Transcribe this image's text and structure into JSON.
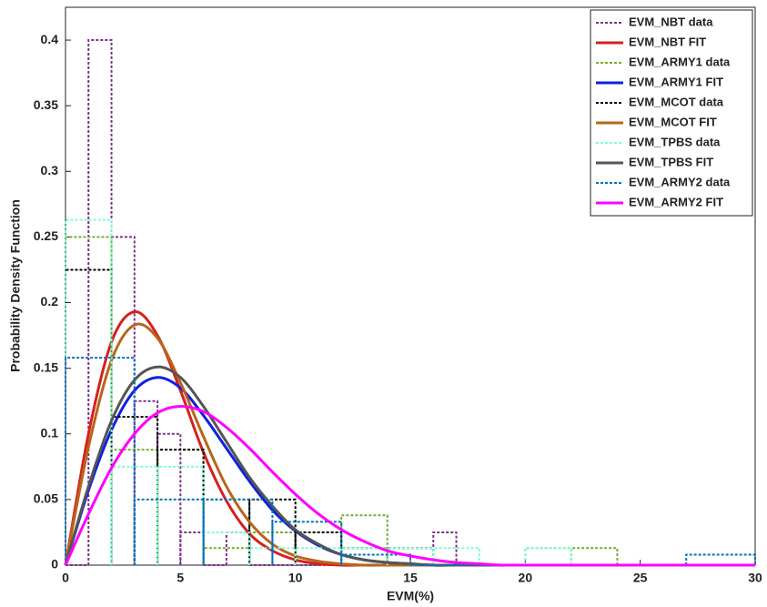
{
  "chart_data": {
    "type": "histogram",
    "xlabel": "EVM(%)",
    "ylabel": "Probability Density Function",
    "xlim": [
      0,
      30
    ],
    "xticks": [
      0,
      5,
      10,
      15,
      20,
      25,
      30
    ],
    "ylim": [
      0,
      0.425
    ],
    "yticks": [
      0,
      0.05,
      0.1,
      0.15,
      0.2,
      0.25,
      0.3,
      0.35,
      0.4
    ],
    "legend": "upper right",
    "x": [
      0,
      1,
      2,
      3,
      4,
      5,
      6,
      7,
      8,
      9,
      10,
      11,
      12,
      13,
      14,
      15,
      16,
      17,
      18,
      19,
      20,
      30
    ],
    "series": [
      {
        "name": "EVM_NBT data",
        "type": "histogram",
        "color": "#7e2f8e",
        "bins": [
          0,
          1,
          2,
          3,
          4,
          5,
          6,
          7,
          8,
          9,
          10,
          11,
          12,
          13,
          14,
          15,
          16,
          17
        ],
        "values": [
          0,
          0.4,
          0.25,
          0.125,
          0.1,
          0.025,
          0,
          0.025,
          0,
          0,
          0,
          0,
          0,
          0,
          0,
          0,
          0.025
        ]
      },
      {
        "name": "EVM_NBT FIT",
        "type": "line",
        "color": "#d62020",
        "values": [
          0,
          0.1,
          0.17,
          0.193,
          0.175,
          0.133,
          0.086,
          0.049,
          0.024,
          0.011,
          0.004,
          0.001,
          0,
          0,
          0,
          0,
          0,
          0,
          0,
          0,
          0,
          0
        ]
      },
      {
        "name": "EVM_ARMY1 data",
        "type": "histogram",
        "color": "#77ac30",
        "bins": [
          0,
          2,
          4,
          6,
          8,
          10,
          12,
          14,
          16,
          18,
          20,
          22,
          24
        ],
        "values": [
          0.25,
          0.088,
          0.088,
          0.013,
          0.025,
          0.025,
          0.038,
          0,
          0,
          0,
          0.013,
          0.013
        ]
      },
      {
        "name": "EVM_ARMY1 FIT",
        "type": "line",
        "color": "#1020e0",
        "values": [
          0,
          0.057,
          0.103,
          0.133,
          0.143,
          0.135,
          0.114,
          0.089,
          0.064,
          0.042,
          0.026,
          0.015,
          0.008,
          0.004,
          0.002,
          0.001,
          0,
          0,
          0,
          0,
          0,
          0
        ]
      },
      {
        "name": "EVM_MCOT data",
        "type": "histogram",
        "color": "#000000",
        "bins": [
          0,
          2,
          4,
          6,
          8,
          10,
          12,
          14,
          16
        ],
        "values": [
          0.225,
          0.113,
          0.088,
          0.05,
          0.05,
          0.025,
          0.013,
          0.013
        ]
      },
      {
        "name": "EVM_MCOT FIT",
        "type": "line",
        "color": "#b8651b",
        "values": [
          0,
          0.09,
          0.156,
          0.183,
          0.173,
          0.139,
          0.098,
          0.06,
          0.033,
          0.016,
          0.007,
          0.003,
          0.001,
          0,
          0,
          0,
          0,
          0,
          0,
          0,
          0,
          0
        ]
      },
      {
        "name": "EVM_TPBS data",
        "type": "histogram",
        "color": "#7fffd0",
        "bins": [
          0,
          2,
          4,
          6,
          8,
          10,
          12,
          14,
          16,
          18,
          20,
          22
        ],
        "values": [
          0.263,
          0.075,
          0.075,
          0.025,
          0.013,
          0.013,
          0.013,
          0.013,
          0.013,
          0,
          0.013
        ]
      },
      {
        "name": "EVM_TPBS FIT",
        "type": "line",
        "color": "#555555",
        "values": [
          0,
          0.06,
          0.11,
          0.141,
          0.151,
          0.143,
          0.121,
          0.094,
          0.067,
          0.045,
          0.027,
          0.016,
          0.008,
          0.004,
          0.002,
          0.001,
          0,
          0,
          0,
          0,
          0,
          0
        ]
      },
      {
        "name": "EVM_ARMY2 data",
        "type": "histogram",
        "color": "#0072bd",
        "bins": [
          0,
          3,
          6,
          9,
          12,
          15,
          18,
          21,
          24,
          27,
          30
        ],
        "values": [
          0.158,
          0.05,
          0.05,
          0.033,
          0.008,
          0,
          0,
          0,
          0,
          0.008
        ]
      },
      {
        "name": "EVM_ARMY2 FIT",
        "type": "line",
        "color": "#ff00ff",
        "values": [
          0,
          0.039,
          0.074,
          0.1,
          0.116,
          0.121,
          0.117,
          0.105,
          0.089,
          0.071,
          0.054,
          0.039,
          0.027,
          0.018,
          0.011,
          0.007,
          0.004,
          0.002,
          0.001,
          0,
          0,
          0
        ]
      }
    ]
  }
}
